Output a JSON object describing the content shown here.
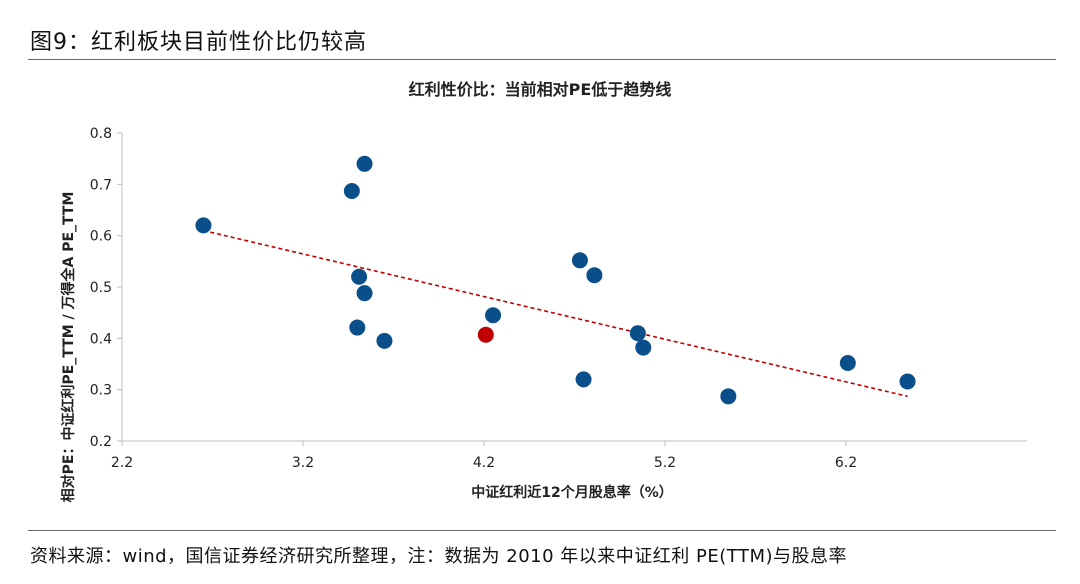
{
  "figure": {
    "title": "图9：红利板块目前性价比仍较高",
    "source": "资料来源：wind，国信证券经济研究所整理，注：数据为 2010 年以来中证红利 PE(TTM)与股息率"
  },
  "chart_data": {
    "type": "scatter",
    "title": "红利性价比：当前相对PE低于趋势线",
    "xlabel": "中证红利近12个月股息率（%）",
    "ylabel": "相对PE：中证红利PE_TTM / 万得全A PE_TTM",
    "xlim": [
      2.2,
      7.2
    ],
    "ylim": [
      0.2,
      0.8
    ],
    "xticks": [
      2.2,
      3.2,
      4.2,
      5.2,
      6.2
    ],
    "yticks": [
      0.2,
      0.3,
      0.4,
      0.5,
      0.6,
      0.7,
      0.8
    ],
    "grid": false,
    "colors": {
      "historical": "#0b4f8a",
      "current": "#c00000",
      "trend": "#c00000"
    },
    "points": [
      {
        "x": 2.65,
        "y": 0.62
      },
      {
        "x": 3.47,
        "y": 0.687
      },
      {
        "x": 3.54,
        "y": 0.74
      },
      {
        "x": 3.51,
        "y": 0.52
      },
      {
        "x": 3.54,
        "y": 0.488
      },
      {
        "x": 3.5,
        "y": 0.421
      },
      {
        "x": 3.65,
        "y": 0.395
      },
      {
        "x": 4.25,
        "y": 0.445
      },
      {
        "x": 4.73,
        "y": 0.552
      },
      {
        "x": 4.81,
        "y": 0.523
      },
      {
        "x": 4.75,
        "y": 0.32
      },
      {
        "x": 5.05,
        "y": 0.41
      },
      {
        "x": 5.08,
        "y": 0.382
      },
      {
        "x": 5.55,
        "y": 0.287
      },
      {
        "x": 6.21,
        "y": 0.352
      },
      {
        "x": 6.54,
        "y": 0.316
      }
    ],
    "current_point": {
      "x": 4.21,
      "y": 0.407
    },
    "trendline": {
      "x": [
        2.65,
        6.54
      ],
      "y": [
        0.61,
        0.287
      ]
    }
  }
}
